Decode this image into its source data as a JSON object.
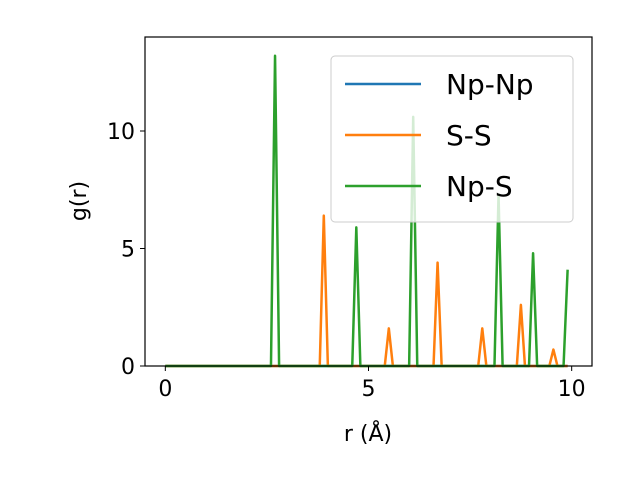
{
  "chart_data": {
    "type": "line",
    "xlabel": "r (Å)",
    "ylabel": "g(r)",
    "xlim": [
      -0.5,
      10.5
    ],
    "ylim": [
      0,
      14
    ],
    "xticks": [
      0,
      5,
      10
    ],
    "yticks": [
      0,
      5,
      10
    ],
    "grid": false,
    "legend_position": "top-right",
    "series": [
      {
        "name": "Np-Np",
        "color": "#1f77b4",
        "x": [
          0,
          9.9
        ],
        "y": [
          0,
          0
        ]
      },
      {
        "name": "S-S",
        "color": "#ff7f0e",
        "x": [
          0,
          3.8,
          3.9,
          4.0,
          5.4,
          5.5,
          5.6,
          6.6,
          6.7,
          6.8,
          7.7,
          7.8,
          7.9,
          8.65,
          8.75,
          8.85,
          9.45,
          9.55,
          9.65,
          9.9
        ],
        "y": [
          0,
          0,
          6.4,
          0,
          0,
          1.6,
          0,
          0,
          4.4,
          0,
          0,
          1.6,
          0,
          0,
          2.6,
          0,
          0,
          0.7,
          0,
          0
        ]
      },
      {
        "name": "Np-S",
        "color": "#2ca02c",
        "x": [
          0,
          2.6,
          2.7,
          2.8,
          4.6,
          4.7,
          4.8,
          6.0,
          6.1,
          6.2,
          8.1,
          8.2,
          8.3,
          8.95,
          9.05,
          9.15,
          9.8,
          9.9
        ],
        "y": [
          0,
          0,
          13.2,
          0,
          0,
          5.9,
          0,
          0,
          10.6,
          0,
          0,
          7.3,
          0,
          0,
          4.8,
          0,
          0,
          4.1
        ]
      }
    ]
  }
}
